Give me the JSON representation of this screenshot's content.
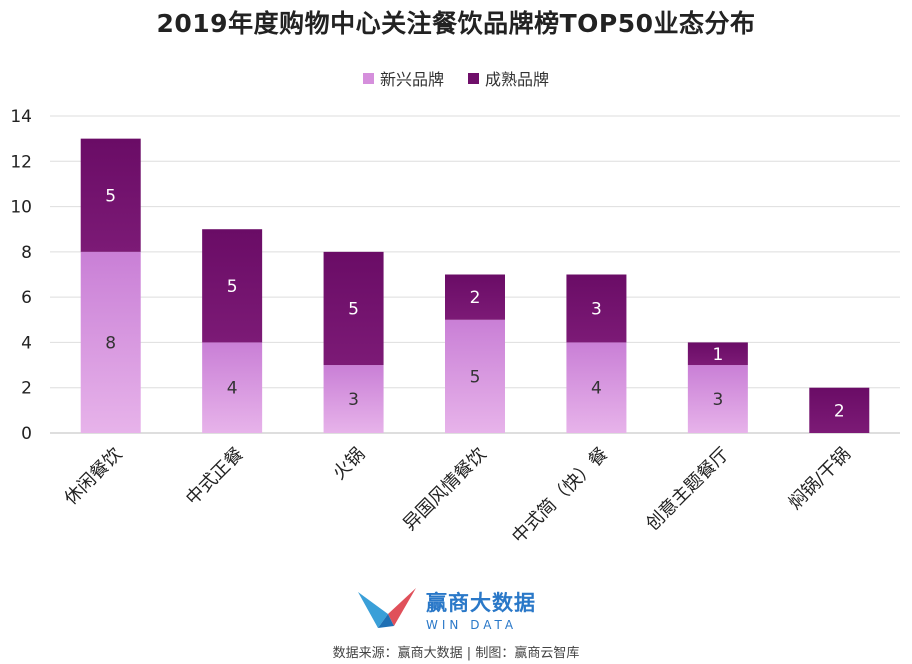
{
  "title": "2019年度购物中心关注餐饮品牌榜TOP50业态分布",
  "legend": [
    {
      "label": "新兴品牌",
      "color": "#d58fdc"
    },
    {
      "label": "成熟品牌",
      "color": "#6f0f6a"
    }
  ],
  "chart_data": {
    "type": "bar",
    "stacked": true,
    "title": "2019年度购物中心关注餐饮品牌榜TOP50业态分布",
    "categories": [
      "休闲餐饮",
      "中式正餐",
      "火锅",
      "异国风情餐饮",
      "中式简（快）餐",
      "创意主题餐厅",
      "焖锅/干锅"
    ],
    "series": [
      {
        "name": "新兴品牌",
        "values": [
          8,
          4,
          3,
          5,
          4,
          3,
          0
        ],
        "color": "#d58fdc"
      },
      {
        "name": "成熟品牌",
        "values": [
          5,
          5,
          5,
          2,
          3,
          1,
          2
        ],
        "color": "#6f0f6a"
      }
    ],
    "ylim": [
      0,
      14
    ],
    "yticks": [
      0,
      2,
      4,
      6,
      8,
      10,
      12,
      14
    ],
    "grid": true,
    "legend_position": "top"
  },
  "logo": {
    "cn": "赢商大数据",
    "en": "WIN DATA"
  },
  "source": "数据来源：赢商大数据 | 制图：赢商云智库"
}
